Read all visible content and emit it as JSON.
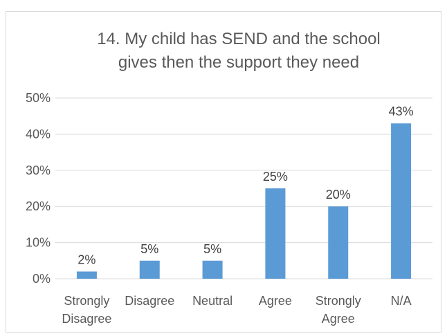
{
  "chart_data": {
    "type": "bar",
    "title_lines": [
      "14. My child has SEND and the school",
      "gives then the support they need"
    ],
    "categories": [
      [
        "Strongly",
        "Disagree"
      ],
      [
        "Disagree"
      ],
      [
        "Neutral"
      ],
      [
        "Agree"
      ],
      [
        "Strongly",
        "Agree"
      ],
      [
        "N/A"
      ]
    ],
    "values": [
      2,
      5,
      5,
      25,
      20,
      43
    ],
    "data_labels": [
      "2%",
      "5%",
      "5%",
      "25%",
      "20%",
      "43%"
    ],
    "ylim": [
      0,
      50
    ],
    "yticks": [
      0,
      10,
      20,
      30,
      40,
      50
    ],
    "ytick_labels": [
      "0%",
      "10%",
      "20%",
      "30%",
      "40%",
      "50%"
    ],
    "grid": true,
    "bar_color": "#5b9bd5",
    "grid_color": "#d9d9d9",
    "legend": "none"
  }
}
